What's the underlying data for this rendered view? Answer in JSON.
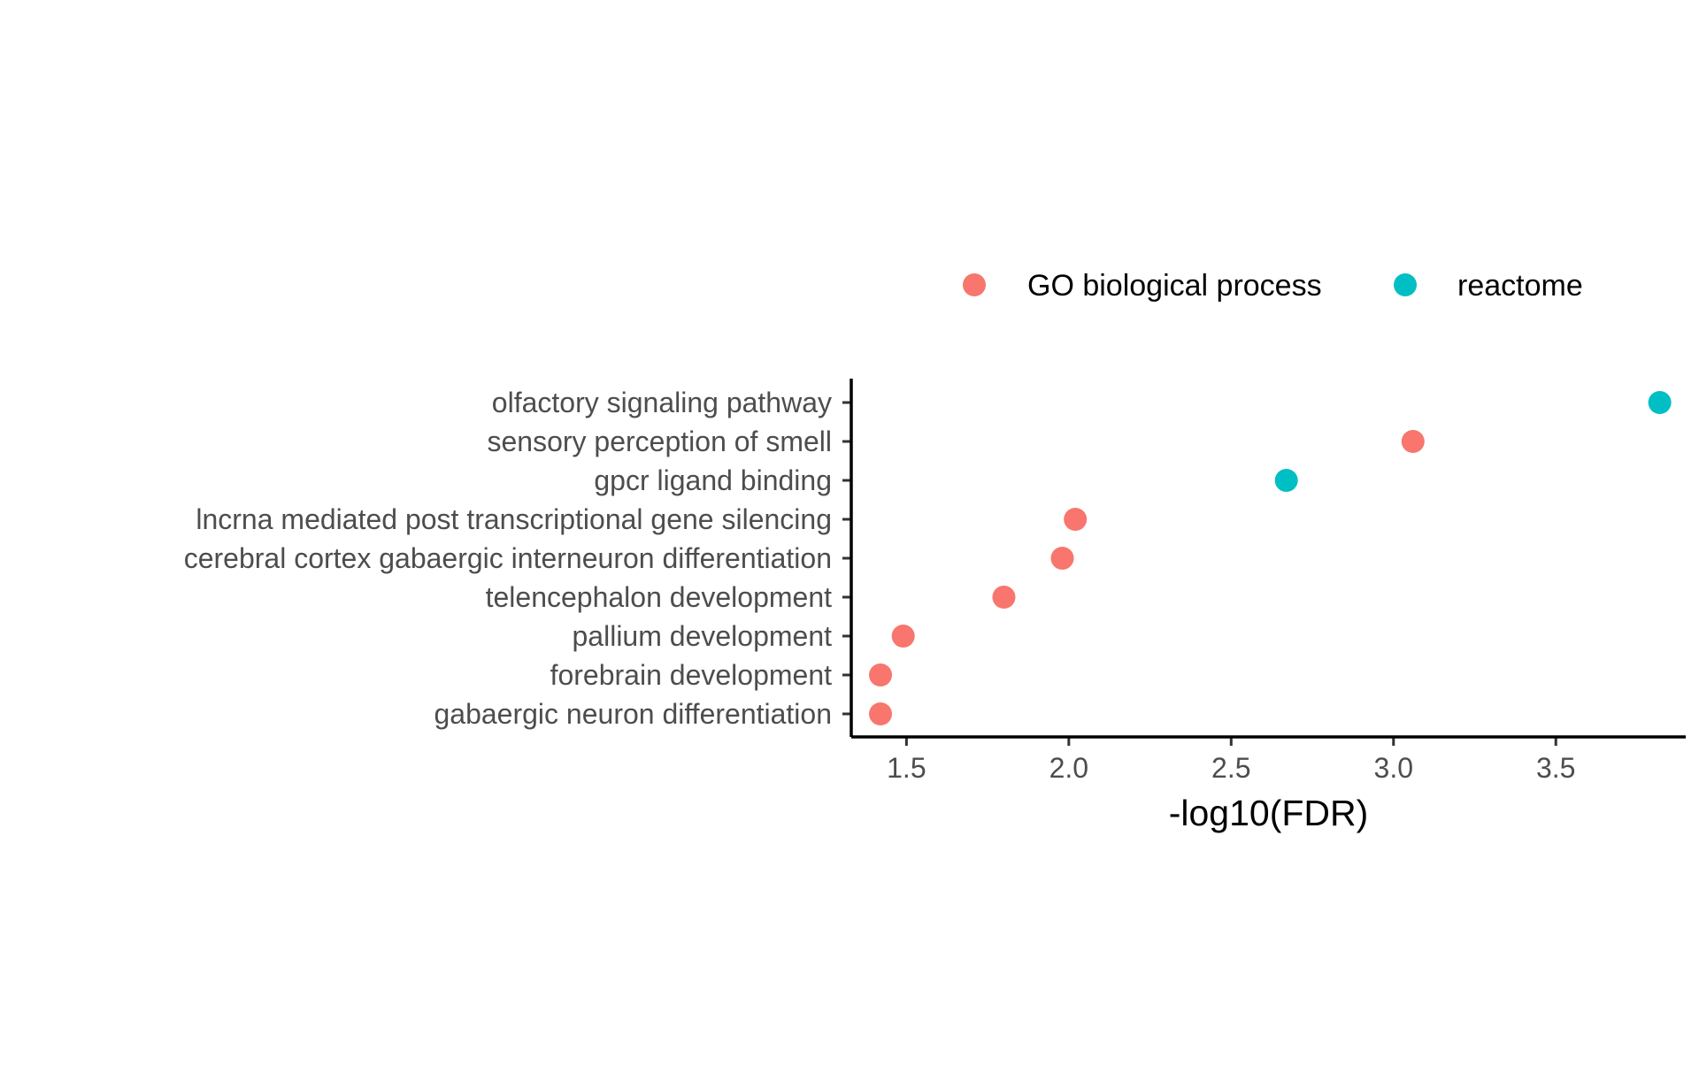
{
  "chart_data": {
    "type": "scatter",
    "title": "",
    "xlabel": "-log10(FDR)",
    "ylabel": "",
    "xlim": [
      1.33,
      3.9
    ],
    "xticks": [
      "1.5",
      "2.0",
      "2.5",
      "3.0",
      "3.5"
    ],
    "xtick_values": [
      1.5,
      2.0,
      2.5,
      3.0,
      3.5
    ],
    "grid": false,
    "legend_position": "top",
    "categories": [
      "olfactory signaling pathway",
      "sensory perception of smell",
      "gpcr ligand binding",
      "lncrna mediated post transcriptional gene silencing",
      "cerebral cortex gabaergic interneuron differentiation",
      "telencephalon development",
      "pallium development",
      "forebrain development",
      "gabaergic neuron differentiation"
    ],
    "series": [
      {
        "name": "GO biological process",
        "color": "#F8766D",
        "points": [
          {
            "category": "sensory perception of smell",
            "x": 3.06
          },
          {
            "category": "lncrna mediated post transcriptional gene silencing",
            "x": 2.02
          },
          {
            "category": "cerebral cortex gabaergic interneuron differentiation",
            "x": 1.98
          },
          {
            "category": "telencephalon development",
            "x": 1.8
          },
          {
            "category": "pallium development",
            "x": 1.49
          },
          {
            "category": "forebrain development",
            "x": 1.42
          },
          {
            "category": "gabaergic neuron differentiation",
            "x": 1.42
          }
        ]
      },
      {
        "name": "reactome",
        "color": "#00BFC4",
        "points": [
          {
            "category": "olfactory signaling pathway",
            "x": 3.82
          },
          {
            "category": "gpcr ligand binding",
            "x": 2.67
          }
        ]
      }
    ]
  }
}
